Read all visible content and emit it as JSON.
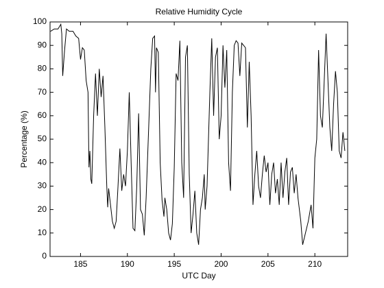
{
  "chart_data": {
    "type": "line",
    "title": "Relative Humidity Cycle",
    "x_label": "UTC Day",
    "y_label": "Percentage (%)",
    "xlim": [
      181.75,
      213.5
    ],
    "ylim": [
      0,
      100
    ],
    "xticks": [
      185,
      190,
      195,
      200,
      205,
      210
    ],
    "yticks": [
      0,
      10,
      20,
      30,
      40,
      50,
      60,
      70,
      80,
      90,
      100
    ],
    "series": [
      {
        "color": "#000000",
        "x": [
          181.8,
          182.2,
          182.6,
          182.9,
          183.0,
          183.1,
          183.3,
          183.5,
          183.8,
          184.2,
          184.5,
          184.8,
          185.0,
          185.2,
          185.4,
          185.6,
          185.8,
          185.9,
          186.0,
          186.1,
          186.2,
          186.4,
          186.6,
          186.8,
          187.0,
          187.2,
          187.4,
          187.6,
          187.8,
          187.9,
          188.0,
          188.2,
          188.4,
          188.6,
          188.8,
          189.0,
          189.2,
          189.4,
          189.6,
          189.8,
          190.0,
          190.2,
          190.4,
          190.6,
          190.8,
          191.0,
          191.2,
          191.4,
          191.6,
          191.8,
          192.0,
          192.3,
          192.5,
          192.7,
          192.9,
          193.0,
          193.1,
          193.3,
          193.5,
          193.7,
          193.9,
          194.0,
          194.2,
          194.4,
          194.6,
          194.8,
          195.0,
          195.2,
          195.4,
          195.6,
          195.8,
          196.0,
          196.2,
          196.4,
          196.6,
          196.8,
          197.0,
          197.2,
          197.4,
          197.6,
          197.8,
          198.0,
          198.2,
          198.3,
          198.5,
          198.8,
          199.0,
          199.2,
          199.4,
          199.6,
          199.8,
          200.0,
          200.2,
          200.4,
          200.6,
          200.8,
          201.0,
          201.2,
          201.4,
          201.6,
          201.8,
          202.0,
          202.2,
          202.4,
          202.6,
          202.8,
          203.0,
          203.2,
          203.4,
          203.6,
          203.8,
          204.0,
          204.2,
          204.4,
          204.6,
          204.8,
          205.0,
          205.2,
          205.4,
          205.6,
          205.8,
          206.0,
          206.2,
          206.4,
          206.6,
          206.8,
          207.0,
          207.2,
          207.4,
          207.6,
          207.8,
          208.0,
          208.2,
          208.5,
          208.7,
          209.0,
          209.3,
          209.6,
          209.8,
          210.0,
          210.2,
          210.4,
          210.6,
          210.8,
          211.0,
          211.2,
          211.4,
          211.6,
          211.8,
          212.0,
          212.2,
          212.4,
          212.6,
          212.8,
          213.0,
          213.2
        ],
        "values": [
          96,
          97,
          97,
          99,
          95,
          77,
          88,
          97,
          96,
          96,
          94,
          93,
          84,
          89,
          88,
          75,
          70,
          38,
          45,
          33,
          31,
          60,
          78,
          60,
          80,
          68,
          77,
          55,
          30,
          21,
          29,
          22,
          15,
          12,
          15,
          30,
          46,
          28,
          35,
          30,
          45,
          70,
          40,
          12,
          11,
          30,
          61,
          20,
          18,
          9,
          25,
          58,
          80,
          93,
          94,
          70,
          89,
          87,
          40,
          24,
          17,
          25,
          20,
          10,
          7,
          14,
          38,
          78,
          75,
          92,
          40,
          25,
          85,
          90,
          35,
          10,
          18,
          28,
          10,
          5,
          20,
          25,
          35,
          20,
          30,
          70,
          93,
          60,
          85,
          89,
          50,
          60,
          90,
          72,
          88,
          40,
          28,
          70,
          90,
          92,
          91,
          77,
          91,
          90,
          89,
          55,
          83,
          60,
          22,
          35,
          45,
          30,
          25,
          35,
          43,
          36,
          40,
          22,
          35,
          40,
          27,
          33,
          22,
          40,
          25,
          36,
          42,
          22,
          36,
          38,
          27,
          35,
          25,
          15,
          5,
          10,
          15,
          22,
          12,
          42,
          50,
          88,
          60,
          55,
          75,
          95,
          75,
          55,
          45,
          65,
          79,
          70,
          45,
          42,
          53,
          45
        ]
      }
    ]
  }
}
